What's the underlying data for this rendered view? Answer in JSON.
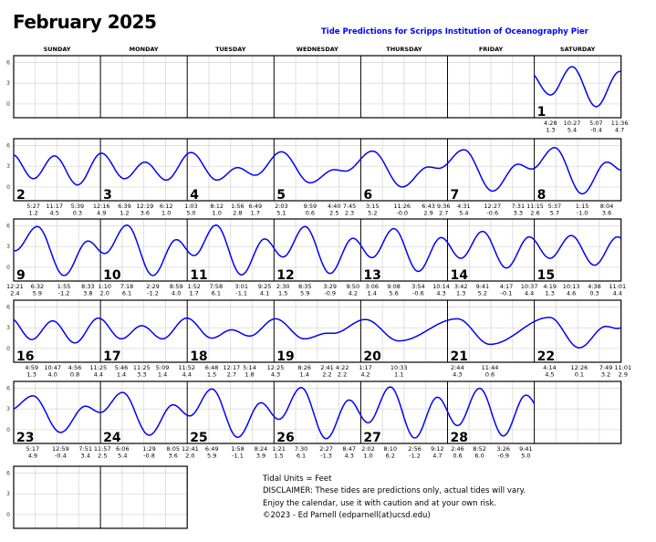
{
  "header": {
    "title": "February 2025",
    "subtitle": "Tide Predictions for Scripps Institution of Oceanography Pier"
  },
  "footer": {
    "lines": [
      "Tidal Units = Feet",
      "DISCLAIMER: These tides are predictions only, actual tides will vary.",
      "Enjoy the calendar, use it with caution and at your own risk.",
      "©2023 - Ed Parnell (edparnell(at)ucsd.edu)"
    ]
  },
  "chart_data": {
    "type": "line",
    "title": "February 2025",
    "subtitle": "Tide Predictions for Scripps Institution of Oceanography Pier",
    "units": "Feet",
    "weekdays": [
      "SUNDAY",
      "MONDAY",
      "TUESDAY",
      "WEDNESDAY",
      "THURSDAY",
      "FRIDAY",
      "SATURDAY"
    ],
    "first_weekday_index": 6,
    "y_ticks": [
      6,
      3,
      0
    ],
    "ylim": [
      -2,
      7
    ],
    "grid": true,
    "line_color": "#0000ff",
    "days": [
      {
        "day": 1,
        "tides": [
          {
            "t": "4:28",
            "h": 1.3
          },
          {
            "t": "10:27",
            "h": 5.4
          },
          {
            "t": "5:07",
            "h": -0.4
          },
          {
            "t": "11:36",
            "h": 4.7
          }
        ]
      },
      {
        "day": 2,
        "tides": [
          {
            "t": "5:27",
            "h": 1.2
          },
          {
            "t": "11:17",
            "h": 4.5
          },
          {
            "t": "5:39",
            "h": 0.3
          }
        ]
      },
      {
        "day": 3,
        "tides": [
          {
            "t": "12:16",
            "h": 4.9
          },
          {
            "t": "6:39",
            "h": 1.2
          },
          {
            "t": "12:19",
            "h": 3.6
          },
          {
            "t": "6:12",
            "h": 1.0
          }
        ]
      },
      {
        "day": 4,
        "tides": [
          {
            "t": "1:03",
            "h": 5.0
          },
          {
            "t": "8:12",
            "h": 1.0
          },
          {
            "t": "1:56",
            "h": 2.8
          },
          {
            "t": "6:49",
            "h": 1.7
          }
        ]
      },
      {
        "day": 5,
        "tides": [
          {
            "t": "2:03",
            "h": 5.1
          },
          {
            "t": "9:59",
            "h": 0.6
          },
          {
            "t": "4:40",
            "h": 2.5
          },
          {
            "t": "7:45",
            "h": 2.3
          }
        ]
      },
      {
        "day": 6,
        "tides": [
          {
            "t": "3:15",
            "h": 5.2
          },
          {
            "t": "11:26",
            "h": -0.0
          },
          {
            "t": "6:43",
            "h": 2.9
          },
          {
            "t": "9:36",
            "h": 2.7
          }
        ]
      },
      {
        "day": 7,
        "tides": [
          {
            "t": "4:31",
            "h": 5.4
          },
          {
            "t": "12:27",
            "h": -0.6
          },
          {
            "t": "7:31",
            "h": 3.3
          },
          {
            "t": "11:15",
            "h": 2.6
          }
        ]
      },
      {
        "day": 8,
        "tides": [
          {
            "t": "5:37",
            "h": 5.7
          },
          {
            "t": "1:15",
            "h": -1.0
          },
          {
            "t": "8:04",
            "h": 3.6
          }
        ]
      },
      {
        "day": 9,
        "tides": [
          {
            "t": "12:21",
            "h": 2.4
          },
          {
            "t": "6:32",
            "h": 5.9
          },
          {
            "t": "1:55",
            "h": -1.2
          },
          {
            "t": "8:33",
            "h": 3.8
          }
        ]
      },
      {
        "day": 10,
        "tides": [
          {
            "t": "1:10",
            "h": 2.0
          },
          {
            "t": "7:18",
            "h": 6.1
          },
          {
            "t": "2:29",
            "h": -1.2
          },
          {
            "t": "8:59",
            "h": 4.0
          }
        ]
      },
      {
        "day": 11,
        "tides": [
          {
            "t": "1:52",
            "h": 1.7
          },
          {
            "t": "7:58",
            "h": 6.1
          },
          {
            "t": "3:01",
            "h": -1.1
          },
          {
            "t": "9:25",
            "h": 4.1
          }
        ]
      },
      {
        "day": 12,
        "tides": [
          {
            "t": "2:30",
            "h": 1.5
          },
          {
            "t": "8:35",
            "h": 5.9
          },
          {
            "t": "3:29",
            "h": -0.9
          },
          {
            "t": "9:50",
            "h": 4.2
          }
        ]
      },
      {
        "day": 13,
        "tides": [
          {
            "t": "3:06",
            "h": 1.4
          },
          {
            "t": "9:08",
            "h": 5.6
          },
          {
            "t": "3:54",
            "h": -0.6
          },
          {
            "t": "10:14",
            "h": 4.3
          }
        ]
      },
      {
        "day": 14,
        "tides": [
          {
            "t": "3:42",
            "h": 1.3
          },
          {
            "t": "9:41",
            "h": 5.2
          },
          {
            "t": "4:17",
            "h": -0.1
          },
          {
            "t": "10:37",
            "h": 4.4
          }
        ]
      },
      {
        "day": 15,
        "tides": [
          {
            "t": "4:19",
            "h": 1.3
          },
          {
            "t": "10:13",
            "h": 4.6
          },
          {
            "t": "4:38",
            "h": 0.3
          },
          {
            "t": "11:01",
            "h": 4.4
          }
        ]
      },
      {
        "day": 16,
        "tides": [
          {
            "t": "4:59",
            "h": 1.3
          },
          {
            "t": "10:47",
            "h": 4.0
          },
          {
            "t": "4:56",
            "h": 0.8
          },
          {
            "t": "11:25",
            "h": 4.4
          }
        ]
      },
      {
        "day": 17,
        "tides": [
          {
            "t": "5:46",
            "h": 1.4
          },
          {
            "t": "11:25",
            "h": 3.3
          },
          {
            "t": "5:09",
            "h": 1.4
          },
          {
            "t": "11:52",
            "h": 4.4
          }
        ]
      },
      {
        "day": 18,
        "tides": [
          {
            "t": "6:48",
            "h": 1.5
          },
          {
            "t": "12:17",
            "h": 2.7
          },
          {
            "t": "5:14",
            "h": 1.8
          }
        ]
      },
      {
        "day": 19,
        "tides": [
          {
            "t": "12:25",
            "h": 4.3
          },
          {
            "t": "8:26",
            "h": 1.4
          },
          {
            "t": "2:41",
            "h": 2.2
          },
          {
            "t": "4:22",
            "h": 2.2
          }
        ]
      },
      {
        "day": 20,
        "tides": [
          {
            "t": "1:17",
            "h": 4.2
          },
          {
            "t": "10:33",
            "h": 1.1
          }
        ]
      },
      {
        "day": 21,
        "tides": [
          {
            "t": "2:44",
            "h": 4.3
          },
          {
            "t": "11:44",
            "h": 0.6
          }
        ]
      },
      {
        "day": 22,
        "tides": [
          {
            "t": "4:14",
            "h": 4.5
          },
          {
            "t": "12:26",
            "h": 0.1
          },
          {
            "t": "7:49",
            "h": 3.2
          },
          {
            "t": "11:01",
            "h": 2.9
          }
        ]
      },
      {
        "day": 23,
        "tides": [
          {
            "t": "5:17",
            "h": 4.9
          },
          {
            "t": "12:59",
            "h": -0.4
          },
          {
            "t": "7:51",
            "h": 3.4
          },
          {
            "t": "11:57",
            "h": 2.5
          }
        ]
      },
      {
        "day": 24,
        "tides": [
          {
            "t": "6:06",
            "h": 5.4
          },
          {
            "t": "1:29",
            "h": -0.8
          },
          {
            "t": "8:05",
            "h": 3.6
          }
        ]
      },
      {
        "day": 25,
        "tides": [
          {
            "t": "12:41",
            "h": 2.0
          },
          {
            "t": "6:49",
            "h": 5.9
          },
          {
            "t": "1:58",
            "h": -1.1
          },
          {
            "t": "8:24",
            "h": 3.9
          }
        ]
      },
      {
        "day": 26,
        "tides": [
          {
            "t": "1:21",
            "h": 1.5
          },
          {
            "t": "7:30",
            "h": 6.1
          },
          {
            "t": "2:27",
            "h": -1.3
          },
          {
            "t": "8:47",
            "h": 4.3
          }
        ]
      },
      {
        "day": 27,
        "tides": [
          {
            "t": "2:02",
            "h": 1.0
          },
          {
            "t": "8:10",
            "h": 6.2
          },
          {
            "t": "2:56",
            "h": -1.2
          },
          {
            "t": "9:12",
            "h": 4.7
          }
        ]
      },
      {
        "day": 28,
        "tides": [
          {
            "t": "2:46",
            "h": 0.6
          },
          {
            "t": "8:52",
            "h": 6.0
          },
          {
            "t": "3:26",
            "h": -0.9
          },
          {
            "t": "9:41",
            "h": 5.0
          }
        ]
      }
    ]
  }
}
